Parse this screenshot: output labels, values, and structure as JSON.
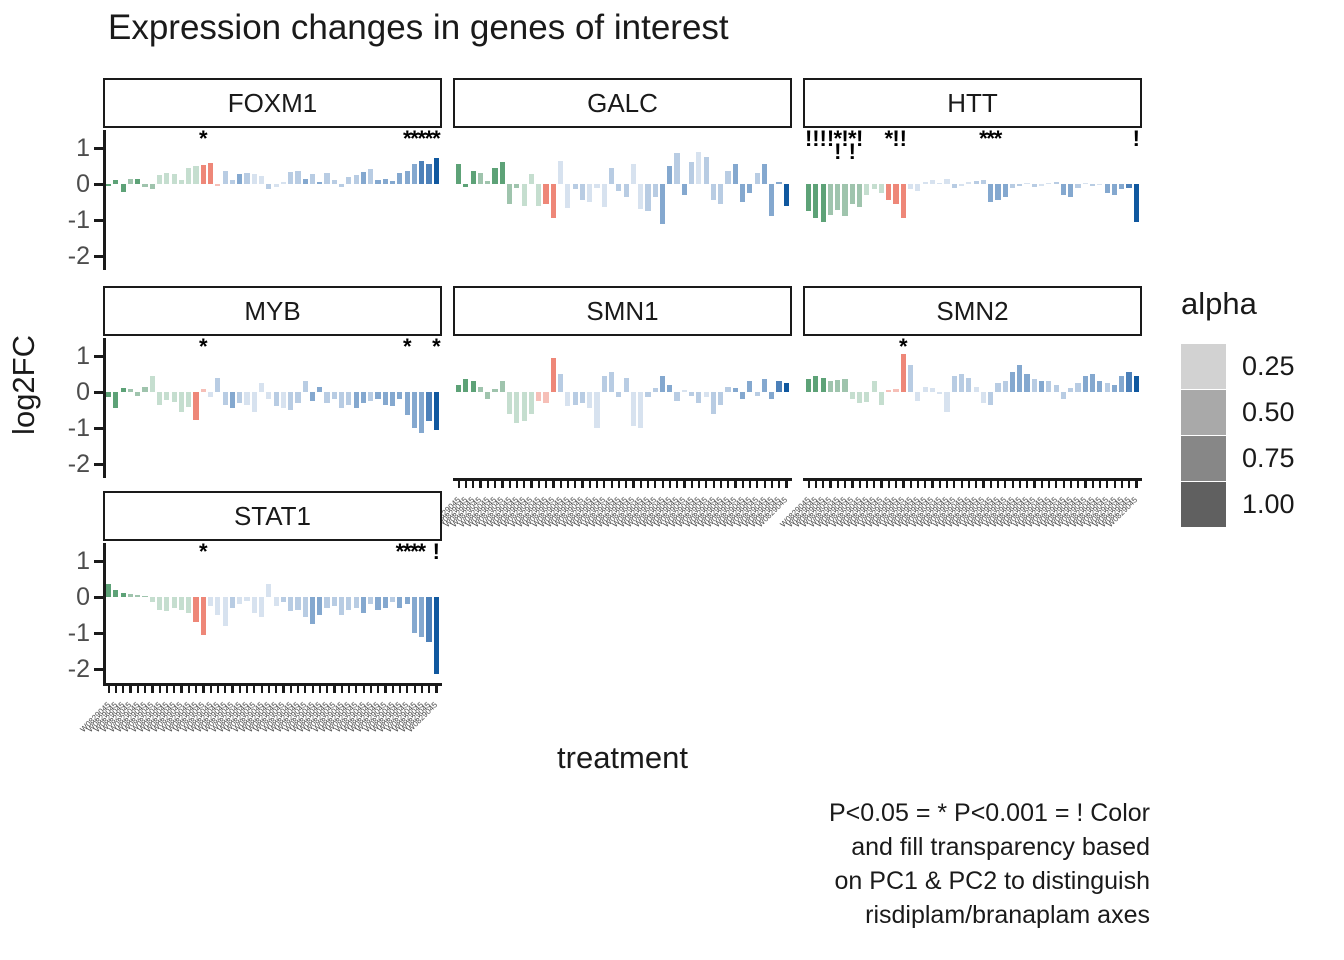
{
  "title": "Expression changes in genes of interest",
  "x_axis_title": "treatment",
  "y_axis_title": "log2FC",
  "caption_lines": [
    "P<0.05 = * P<0.001 = ! Color",
    "and fill transparency based",
    "on PC1 & PC2 to distinguish",
    "risdiplam/branaplam axes"
  ],
  "legend": {
    "title": "alpha",
    "entries": [
      {
        "label": "0.25",
        "color": "#d2d2d2"
      },
      {
        "label": "0.50",
        "color": "#a9a9a9"
      },
      {
        "label": "0.75",
        "color": "#878787"
      },
      {
        "label": "1.00",
        "color": "#606060"
      }
    ]
  },
  "chart_data": {
    "type": "bar",
    "title": "Expression changes in genes of interest",
    "xlabel": "treatment",
    "ylabel": "log2FC",
    "ylim": [
      -2.35,
      1.5
    ],
    "yticks": [
      1,
      0,
      -1,
      -2
    ],
    "grid": false,
    "legend_position": "right",
    "significance_note": "* = P<0.05, ! = P<0.001",
    "x_tick_count": 46,
    "x_tick_labels_legible": false,
    "x_tick_label_placeholder": "W0829045",
    "palette": {
      "g1": "#5da277",
      "g2": "#9fc4ad",
      "g3": "#c5decf",
      "s1": "#ee8778",
      "s2": "#f6bfb7",
      "b1": "#d7e2ef",
      "b2": "#b8cce3",
      "b3": "#84a8cf",
      "b4": "#4c80b9",
      "d": "#10589f"
    },
    "facets": [
      {
        "name": "FOXM1",
        "values": [
          -0.06,
          0.12,
          -0.22,
          0.14,
          0.15,
          -0.08,
          -0.13,
          0.25,
          0.3,
          0.27,
          0.12,
          0.45,
          0.5,
          0.52,
          0.57,
          -0.06,
          0.35,
          0.1,
          0.28,
          0.3,
          0.28,
          0.22,
          -0.13,
          -0.08,
          0.05,
          0.33,
          0.35,
          0.15,
          0.28,
          0.05,
          0.3,
          0.12,
          -0.07,
          0.2,
          0.25,
          0.32,
          0.42,
          0.12,
          0.15,
          0.08,
          0.3,
          0.35,
          0.55,
          0.65,
          0.55,
          0.72
        ],
        "colors": [
          "g1",
          "g1",
          "g1",
          "g2",
          "g1",
          "g2",
          "g2",
          "g3",
          "g3",
          "g3",
          "g3",
          "g3",
          "g3",
          "s1",
          "s1",
          "s2",
          "b2",
          "b2",
          "b3",
          "b2",
          "b1",
          "b1",
          "b2",
          "b1",
          "b1",
          "b2",
          "b2",
          "b3",
          "b2",
          "b3",
          "b2",
          "b2",
          "b2",
          "b2",
          "b2",
          "b3",
          "b2",
          "b3",
          "b3",
          "b3",
          "b3",
          "b3",
          "b3",
          "b4",
          "b4",
          "d"
        ],
        "markers": [
          {
            "i": 14,
            "m": "*"
          },
          {
            "i": 42,
            "m": "*"
          },
          {
            "i": 43,
            "m": "*"
          },
          {
            "i": 44,
            "m": "*"
          },
          {
            "i": 45,
            "m": "*"
          },
          {
            "i": 46,
            "m": "*"
          }
        ]
      },
      {
        "name": "GALC",
        "values": [
          0.55,
          -0.08,
          0.35,
          0.3,
          0.08,
          0.45,
          0.62,
          -0.55,
          -0.12,
          -0.62,
          0.28,
          -0.62,
          -0.55,
          -0.95,
          0.65,
          -0.68,
          -0.15,
          -0.45,
          -0.5,
          -0.12,
          -0.65,
          0.45,
          -0.2,
          -0.35,
          0.55,
          -0.7,
          -0.75,
          -0.35,
          -1.1,
          0.5,
          0.85,
          -0.3,
          0.6,
          0.9,
          0.75,
          -0.45,
          -0.55,
          0.35,
          0.55,
          -0.5,
          -0.25,
          0.3,
          0.55,
          -0.9,
          0.05,
          -0.62
        ],
        "colors": [
          "g1",
          "g1",
          "g1",
          "g2",
          "g2",
          "g1",
          "g1",
          "g2",
          "g2",
          "g3",
          "g3",
          "g3",
          "s1",
          "s1",
          "b1",
          "b1",
          "b2",
          "b2",
          "b1",
          "b1",
          "b1",
          "b2",
          "b2",
          "b2",
          "b1",
          "b1",
          "b2",
          "b2",
          "b3",
          "b3",
          "b2",
          "b3",
          "b2",
          "b1",
          "b2",
          "b2",
          "b2",
          "b2",
          "b3",
          "b3",
          "b3",
          "b2",
          "b3",
          "b3",
          "b3",
          "d"
        ],
        "markers": []
      },
      {
        "name": "HTT",
        "values": [
          -0.75,
          -0.95,
          -1.05,
          -0.85,
          -0.72,
          -0.9,
          -0.55,
          -0.65,
          -0.3,
          -0.15,
          -0.25,
          -0.45,
          -0.55,
          -0.95,
          -0.15,
          -0.2,
          0.05,
          0.1,
          0.03,
          0.15,
          -0.1,
          -0.05,
          0.05,
          0.08,
          0.1,
          -0.5,
          -0.45,
          -0.35,
          -0.1,
          -0.05,
          0.03,
          -0.08,
          -0.06,
          0.02,
          0.05,
          -0.3,
          -0.35,
          -0.12,
          0.04,
          -0.06,
          -0.04,
          -0.25,
          -0.3,
          -0.15,
          -0.1,
          -1.05
        ],
        "colors": [
          "g1",
          "g1",
          "g1",
          "g2",
          "g2",
          "g2",
          "g2",
          "g2",
          "g3",
          "g3",
          "g3",
          "s1",
          "s1",
          "s1",
          "b1",
          "b1",
          "b1",
          "b1",
          "b1",
          "b1",
          "b2",
          "b1",
          "b1",
          "b2",
          "b2",
          "b3",
          "b3",
          "b3",
          "b2",
          "b2",
          "b1",
          "b2",
          "b1",
          "b1",
          "b2",
          "b3",
          "b3",
          "b2",
          "b1",
          "b2",
          "b1",
          "b3",
          "b3",
          "b3",
          "b4",
          "d"
        ],
        "markers": [
          {
            "i": 1,
            "m": "!"
          },
          {
            "i": 2,
            "m": "!"
          },
          {
            "i": 3,
            "m": "!"
          },
          {
            "i": 4,
            "m": "!"
          },
          {
            "i": 5,
            "m": "*!"
          },
          {
            "i": 6,
            "m": "!"
          },
          {
            "i": 7,
            "m": "*!"
          },
          {
            "i": 8,
            "m": "!"
          },
          {
            "i": 12,
            "m": "*"
          },
          {
            "i": 13,
            "m": "!"
          },
          {
            "i": 14,
            "m": "!"
          },
          {
            "i": 25,
            "m": "*"
          },
          {
            "i": 26,
            "m": "*"
          },
          {
            "i": 27,
            "m": "*"
          },
          {
            "i": 46,
            "m": "!"
          }
        ]
      },
      {
        "name": "MYB",
        "values": [
          -0.15,
          -0.45,
          0.1,
          0.08,
          -0.12,
          0.15,
          0.45,
          -0.35,
          -0.22,
          -0.28,
          -0.55,
          -0.42,
          -0.78,
          0.08,
          -0.15,
          0.4,
          -0.35,
          -0.45,
          -0.3,
          -0.35,
          -0.55,
          0.25,
          -0.2,
          -0.4,
          -0.45,
          -0.5,
          -0.3,
          0.3,
          -0.25,
          0.15,
          -0.3,
          -0.2,
          -0.45,
          -0.35,
          -0.45,
          -0.3,
          -0.25,
          -0.2,
          -0.35,
          -0.4,
          -0.2,
          -0.65,
          -1.0,
          -1.15,
          -0.8,
          -1.05
        ],
        "colors": [
          "g1",
          "g1",
          "g1",
          "g2",
          "g2",
          "g2",
          "g3",
          "g3",
          "g3",
          "g3",
          "g3",
          "g3",
          "s1",
          "s2",
          "b1",
          "b2",
          "b2",
          "b3",
          "b2",
          "b1",
          "b1",
          "b1",
          "b1",
          "b2",
          "b1",
          "b2",
          "b2",
          "b2",
          "b3",
          "b3",
          "b2",
          "b2",
          "b2",
          "b2",
          "b3",
          "b3",
          "b2",
          "b3",
          "b3",
          "b3",
          "b3",
          "b3",
          "b3",
          "b3",
          "b4",
          "d"
        ],
        "markers": [
          {
            "i": 14,
            "m": "*"
          },
          {
            "i": 42,
            "m": "*"
          },
          {
            "i": 46,
            "m": "*"
          }
        ]
      },
      {
        "name": "SMN1",
        "values": [
          0.2,
          0.35,
          0.3,
          0.15,
          -0.2,
          0.08,
          0.3,
          -0.6,
          -0.85,
          -0.8,
          -0.6,
          -0.25,
          -0.3,
          0.95,
          0.5,
          -0.4,
          -0.35,
          -0.3,
          -0.45,
          -1.0,
          0.45,
          0.55,
          -0.15,
          0.4,
          -0.95,
          -1.0,
          -0.15,
          0.1,
          0.45,
          0.2,
          -0.25,
          0.05,
          -0.1,
          -0.3,
          -0.15,
          -0.6,
          -0.35,
          0.15,
          0.1,
          -0.2,
          0.3,
          -0.1,
          0.35,
          -0.2,
          0.3,
          0.25
        ],
        "colors": [
          "g1",
          "g1",
          "g1",
          "g2",
          "g2",
          "g2",
          "g2",
          "g3",
          "g3",
          "g3",
          "g3",
          "s2",
          "s2",
          "s1",
          "b2",
          "b1",
          "b2",
          "b2",
          "b1",
          "b1",
          "b2",
          "b2",
          "b2",
          "b2",
          "b1",
          "b1",
          "b2",
          "b2",
          "b3",
          "b3",
          "b2",
          "b1",
          "b2",
          "b2",
          "b1",
          "b2",
          "b2",
          "b2",
          "b3",
          "b3",
          "b3",
          "b2",
          "b3",
          "b3",
          "b4",
          "d"
        ],
        "markers": []
      },
      {
        "name": "SMN2",
        "values": [
          0.35,
          0.45,
          0.4,
          0.3,
          0.32,
          0.35,
          -0.2,
          -0.3,
          -0.28,
          0.3,
          -0.35,
          0.05,
          0.08,
          1.05,
          0.75,
          -0.25,
          0.15,
          0.1,
          -0.05,
          -0.55,
          0.45,
          0.5,
          0.4,
          0.15,
          -0.3,
          -0.35,
          0.25,
          0.3,
          0.55,
          0.75,
          0.5,
          0.35,
          0.3,
          0.3,
          0.2,
          -0.2,
          0.1,
          0.25,
          0.45,
          0.5,
          0.3,
          0.25,
          0.2,
          0.45,
          0.55,
          0.45
        ],
        "colors": [
          "g1",
          "g1",
          "g1",
          "g2",
          "g2",
          "g2",
          "g3",
          "g3",
          "g3",
          "g3",
          "g3",
          "s2",
          "s2",
          "s1",
          "b2",
          "b1",
          "b1",
          "b1",
          "b1",
          "b1",
          "b2",
          "b2",
          "b2",
          "b1",
          "b1",
          "b2",
          "b2",
          "b2",
          "b3",
          "b3",
          "b3",
          "b2",
          "b3",
          "b2",
          "b2",
          "b2",
          "b2",
          "b2",
          "b3",
          "b3",
          "b3",
          "b2",
          "b3",
          "b3",
          "b4",
          "d"
        ],
        "markers": [
          {
            "i": 14,
            "m": "*"
          }
        ]
      },
      {
        "name": "STAT1",
        "values": [
          0.35,
          0.2,
          0.1,
          0.08,
          0.05,
          0.02,
          -0.15,
          -0.35,
          -0.4,
          -0.3,
          -0.35,
          -0.45,
          -0.7,
          -1.05,
          -0.25,
          -0.5,
          -0.8,
          -0.3,
          -0.2,
          -0.1,
          -0.45,
          -0.55,
          0.35,
          -0.25,
          -0.15,
          -0.4,
          -0.35,
          -0.55,
          -0.75,
          -0.5,
          -0.3,
          -0.25,
          -0.5,
          -0.35,
          -0.3,
          -0.45,
          -0.2,
          -0.35,
          -0.3,
          -0.15,
          -0.3,
          -0.2,
          -1.0,
          -1.1,
          -1.25,
          -2.15
        ],
        "colors": [
          "g1",
          "g1",
          "g1",
          "g2",
          "g2",
          "g2",
          "g3",
          "g3",
          "g3",
          "g3",
          "g3",
          "g3",
          "s1",
          "s1",
          "b1",
          "b1",
          "b1",
          "b2",
          "b1",
          "b1",
          "b1",
          "b1",
          "b1",
          "b1",
          "b2",
          "b2",
          "b2",
          "b2",
          "b3",
          "b3",
          "b2",
          "b2",
          "b2",
          "b2",
          "b2",
          "b3",
          "b2",
          "b3",
          "b3",
          "b2",
          "b3",
          "b3",
          "b3",
          "b3",
          "b4",
          "d"
        ],
        "markers": [
          {
            "i": 14,
            "m": "*"
          },
          {
            "i": 41,
            "m": "*"
          },
          {
            "i": 42,
            "m": "*"
          },
          {
            "i": 43,
            "m": "*"
          },
          {
            "i": 44,
            "m": "*"
          },
          {
            "i": 46,
            "m": "!"
          }
        ]
      }
    ]
  }
}
